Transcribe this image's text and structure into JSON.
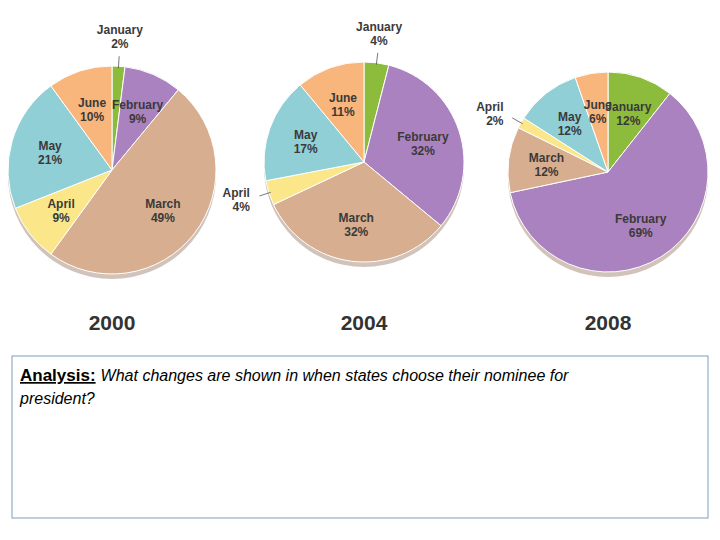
{
  "chart_data": [
    {
      "type": "pie",
      "title": "2000",
      "categories": [
        "January",
        "February",
        "March",
        "April",
        "May",
        "June"
      ],
      "values": [
        2,
        9,
        49,
        9,
        21,
        10
      ],
      "value_labels": [
        "2%",
        "9%",
        "49%",
        "9%",
        "21%",
        "10%"
      ],
      "colors": [
        "#8dbb3c",
        "#ab82c0",
        "#d7ae8f",
        "#fbe78a",
        "#8fcfd5",
        "#f8b57c"
      ],
      "data_labels": true
    },
    {
      "type": "pie",
      "title": "2004",
      "categories": [
        "January",
        "February",
        "March",
        "April",
        "May",
        "June"
      ],
      "values": [
        4,
        32,
        32,
        4,
        17,
        11
      ],
      "value_labels": [
        "4%",
        "32%",
        "32%",
        "4%",
        "17%",
        "11%"
      ],
      "colors": [
        "#8dbb3c",
        "#ab82c0",
        "#d7ae8f",
        "#fbe78a",
        "#8fcfd5",
        "#f8b57c"
      ],
      "data_labels": true
    },
    {
      "type": "pie",
      "title": "2008",
      "categories": [
        "January",
        "February",
        "March",
        "April",
        "May",
        "June"
      ],
      "values": [
        12,
        69,
        12,
        2,
        12,
        6
      ],
      "value_labels": [
        "12%",
        "69%",
        "12%",
        "2%",
        "12%",
        "6%"
      ],
      "colors": [
        "#8dbb3c",
        "#ab82c0",
        "#d7ae8f",
        "#fbe78a",
        "#8fcfd5",
        "#f8b57c"
      ],
      "data_labels": true
    }
  ],
  "analysis": {
    "heading": "Analysis:",
    "question": [
      "What changes are shown in when states choose their nominee for",
      "president?"
    ]
  }
}
